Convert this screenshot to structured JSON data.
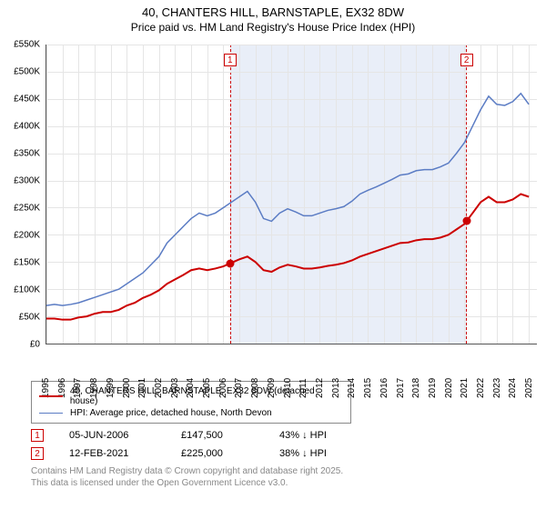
{
  "title": "40, CHANTERS HILL, BARNSTAPLE, EX32 8DW",
  "subtitle": "Price paid vs. HM Land Registry's House Price Index (HPI)",
  "chart": {
    "type": "line",
    "x_start_year": 1995,
    "x_end_year": 2025.5,
    "y_min": 0,
    "y_max": 550,
    "y_tick_step": 50,
    "y_tick_labels": [
      "£0",
      "£50K",
      "£100K",
      "£150K",
      "£200K",
      "£250K",
      "£300K",
      "£350K",
      "£400K",
      "£450K",
      "£500K",
      "£550K"
    ],
    "x_tick_years": [
      1995,
      1996,
      1997,
      1998,
      1999,
      2000,
      2001,
      2002,
      2003,
      2004,
      2005,
      2006,
      2007,
      2008,
      2009,
      2010,
      2011,
      2012,
      2013,
      2014,
      2015,
      2016,
      2017,
      2018,
      2019,
      2020,
      2021,
      2022,
      2023,
      2024,
      2025
    ],
    "background_color": "#ffffff",
    "grid_color": "#e5e5e5",
    "axis_color": "#555555",
    "shaded_region": {
      "start": 2006.42,
      "end": 2021.12,
      "color": "#e9eef8"
    },
    "series": [
      {
        "id": "price_paid",
        "label": "40, CHANTERS HILL, BARNSTAPLE, EX32 8DW (detached house)",
        "color": "#cc0000",
        "line_width": 2,
        "points": [
          [
            1995,
            46
          ],
          [
            1995.5,
            46
          ],
          [
            1996,
            44
          ],
          [
            1996.5,
            44
          ],
          [
            1997,
            48
          ],
          [
            1997.5,
            50
          ],
          [
            1998,
            55
          ],
          [
            1998.5,
            58
          ],
          [
            1999,
            58
          ],
          [
            1999.5,
            62
          ],
          [
            2000,
            70
          ],
          [
            2000.5,
            75
          ],
          [
            2001,
            84
          ],
          [
            2001.5,
            90
          ],
          [
            2002,
            98
          ],
          [
            2002.5,
            110
          ],
          [
            2003,
            118
          ],
          [
            2003.5,
            126
          ],
          [
            2004,
            135
          ],
          [
            2004.5,
            138
          ],
          [
            2005,
            135
          ],
          [
            2005.5,
            138
          ],
          [
            2006,
            142
          ],
          [
            2006.42,
            147.5
          ],
          [
            2007,
            155
          ],
          [
            2007.5,
            160
          ],
          [
            2008,
            150
          ],
          [
            2008.5,
            135
          ],
          [
            2009,
            132
          ],
          [
            2009.5,
            140
          ],
          [
            2010,
            145
          ],
          [
            2010.5,
            142
          ],
          [
            2011,
            138
          ],
          [
            2011.5,
            138
          ],
          [
            2012,
            140
          ],
          [
            2012.5,
            143
          ],
          [
            2013,
            145
          ],
          [
            2013.5,
            148
          ],
          [
            2014,
            153
          ],
          [
            2014.5,
            160
          ],
          [
            2015,
            165
          ],
          [
            2015.5,
            170
          ],
          [
            2016,
            175
          ],
          [
            2016.5,
            180
          ],
          [
            2017,
            185
          ],
          [
            2017.5,
            186
          ],
          [
            2018,
            190
          ],
          [
            2018.5,
            192
          ],
          [
            2019,
            192
          ],
          [
            2019.5,
            195
          ],
          [
            2020,
            200
          ],
          [
            2020.5,
            210
          ],
          [
            2021,
            220
          ],
          [
            2021.12,
            225
          ],
          [
            2021.5,
            240
          ],
          [
            2022,
            260
          ],
          [
            2022.5,
            270
          ],
          [
            2023,
            260
          ],
          [
            2023.5,
            260
          ],
          [
            2024,
            265
          ],
          [
            2024.5,
            275
          ],
          [
            2025,
            270
          ]
        ]
      },
      {
        "id": "hpi",
        "label": "HPI: Average price, detached house, North Devon",
        "color": "#5b7cc4",
        "line_width": 1.5,
        "points": [
          [
            1995,
            70
          ],
          [
            1995.5,
            72
          ],
          [
            1996,
            70
          ],
          [
            1996.5,
            72
          ],
          [
            1997,
            75
          ],
          [
            1997.5,
            80
          ],
          [
            1998,
            85
          ],
          [
            1998.5,
            90
          ],
          [
            1999,
            95
          ],
          [
            1999.5,
            100
          ],
          [
            2000,
            110
          ],
          [
            2000.5,
            120
          ],
          [
            2001,
            130
          ],
          [
            2001.5,
            145
          ],
          [
            2002,
            160
          ],
          [
            2002.5,
            185
          ],
          [
            2003,
            200
          ],
          [
            2003.5,
            215
          ],
          [
            2004,
            230
          ],
          [
            2004.5,
            240
          ],
          [
            2005,
            235
          ],
          [
            2005.5,
            240
          ],
          [
            2006,
            250
          ],
          [
            2006.5,
            260
          ],
          [
            2007,
            270
          ],
          [
            2007.5,
            280
          ],
          [
            2008,
            260
          ],
          [
            2008.5,
            230
          ],
          [
            2009,
            225
          ],
          [
            2009.5,
            240
          ],
          [
            2010,
            248
          ],
          [
            2010.5,
            242
          ],
          [
            2011,
            235
          ],
          [
            2011.5,
            235
          ],
          [
            2012,
            240
          ],
          [
            2012.5,
            245
          ],
          [
            2013,
            248
          ],
          [
            2013.5,
            252
          ],
          [
            2014,
            262
          ],
          [
            2014.5,
            275
          ],
          [
            2015,
            282
          ],
          [
            2015.5,
            288
          ],
          [
            2016,
            295
          ],
          [
            2016.5,
            302
          ],
          [
            2017,
            310
          ],
          [
            2017.5,
            312
          ],
          [
            2018,
            318
          ],
          [
            2018.5,
            320
          ],
          [
            2019,
            320
          ],
          [
            2019.5,
            325
          ],
          [
            2020,
            332
          ],
          [
            2020.5,
            350
          ],
          [
            2021,
            370
          ],
          [
            2021.5,
            400
          ],
          [
            2022,
            430
          ],
          [
            2022.5,
            455
          ],
          [
            2023,
            440
          ],
          [
            2023.5,
            438
          ],
          [
            2024,
            445
          ],
          [
            2024.5,
            460
          ],
          [
            2025,
            440
          ]
        ]
      }
    ],
    "markers": [
      {
        "index": 1,
        "year": 2006.42,
        "value": 147.5,
        "color": "#cc0000",
        "badge_top_offset_pct": 3
      },
      {
        "index": 2,
        "year": 2021.12,
        "value": 225,
        "color": "#cc0000",
        "badge_top_offset_pct": 3
      }
    ]
  },
  "events": [
    {
      "index": 1,
      "badge_color": "#cc0000",
      "date": "05-JUN-2006",
      "price": "£147,500",
      "delta": "43% ↓ HPI"
    },
    {
      "index": 2,
      "badge_color": "#cc0000",
      "date": "12-FEB-2021",
      "price": "£225,000",
      "delta": "38% ↓ HPI"
    }
  ],
  "footnote_line1": "Contains HM Land Registry data © Crown copyright and database right 2025.",
  "footnote_line2": "This data is licensed under the Open Government Licence v3.0."
}
